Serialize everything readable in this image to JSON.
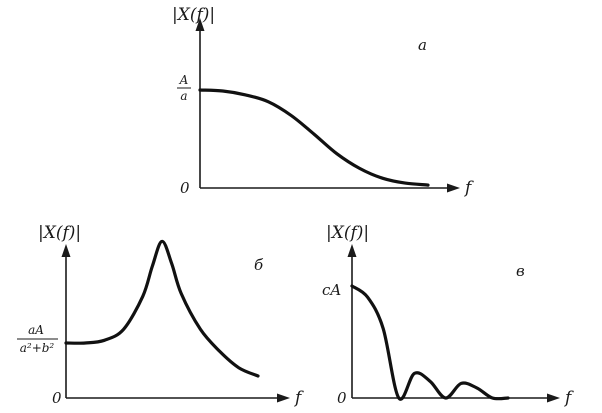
{
  "chart_data": [
    {
      "type": "line",
      "panel_label": "a",
      "ylabel": "|X(f)|",
      "xlabel": "f",
      "origin_label": "0",
      "ytick_label": {
        "numerator": "A",
        "denominator": "a"
      },
      "series": [
        {
          "x": [
            0,
            0.1,
            0.2,
            0.3,
            0.4,
            0.5,
            0.6,
            0.7,
            0.8,
            0.9,
            1.0
          ],
          "y": [
            1.0,
            0.99,
            0.95,
            0.88,
            0.74,
            0.55,
            0.35,
            0.2,
            0.1,
            0.05,
            0.03
          ]
        }
      ]
    },
    {
      "type": "line",
      "panel_label": "б",
      "ylabel": "|X(f)|",
      "xlabel": "f",
      "origin_label": "0",
      "ytick_label": {
        "numerator": "aA",
        "denominator": "a²+b²"
      },
      "series": [
        {
          "x": [
            0,
            0.1,
            0.2,
            0.3,
            0.4,
            0.45,
            0.5,
            0.55,
            0.6,
            0.7,
            0.8,
            0.9,
            1.0
          ],
          "y": [
            1.0,
            1.0,
            1.05,
            1.25,
            1.85,
            2.4,
            2.85,
            2.45,
            1.9,
            1.25,
            0.85,
            0.55,
            0.4
          ]
        }
      ]
    },
    {
      "type": "line",
      "panel_label": "в",
      "ylabel": "|X(f)|",
      "xlabel": "f",
      "origin_label": "0",
      "ytick_label": {
        "numerator": "cA",
        "denominator": ""
      },
      "series": [
        {
          "x": [
            0,
            0.1,
            0.2,
            0.3,
            0.4,
            0.5,
            0.6,
            0.7,
            0.8,
            0.9,
            1.0
          ],
          "y": [
            1.0,
            0.9,
            0.62,
            0.0,
            0.22,
            0.15,
            0.0,
            0.13,
            0.09,
            0.0,
            0.0
          ]
        }
      ]
    }
  ]
}
